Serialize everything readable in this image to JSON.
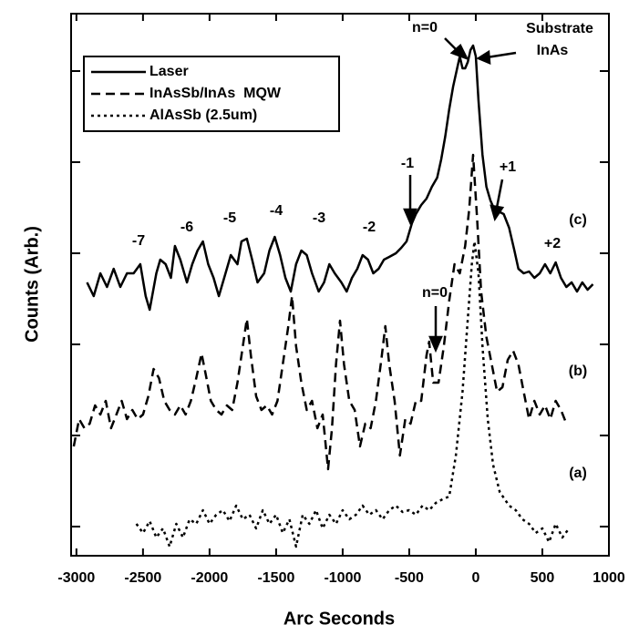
{
  "chart_data": {
    "type": "line",
    "xlabel": "Arc Seconds",
    "ylabel": "Counts (Arb.)",
    "xlim": [
      -3040,
      1000
    ],
    "xticks": [
      -3000,
      -2500,
      -2000,
      -1500,
      -1000,
      -500,
      0,
      500,
      1000
    ],
    "ylim": [
      -0.32,
      5.63
    ],
    "yticks": [
      0,
      1,
      2,
      3,
      4,
      5
    ],
    "yscale": "log",
    "legend": "upper left",
    "series": [
      {
        "name": "Laser",
        "color": "#000000",
        "linestyle": "solid",
        "x": [
          -2920,
          -2870,
          -2820,
          -2770,
          -2720,
          -2670,
          -2620,
          -2570,
          -2520,
          -2480,
          -2450,
          -2400,
          -2370,
          -2330,
          -2290,
          -2260,
          -2220,
          -2170,
          -2130,
          -2090,
          -2050,
          -2010,
          -1970,
          -1930,
          -1880,
          -1840,
          -1790,
          -1760,
          -1720,
          -1680,
          -1640,
          -1590,
          -1550,
          -1510,
          -1470,
          -1430,
          -1390,
          -1350,
          -1310,
          -1270,
          -1230,
          -1180,
          -1140,
          -1100,
          -1060,
          -1010,
          -970,
          -930,
          -890,
          -850,
          -810,
          -770,
          -730,
          -690,
          -650,
          -600,
          -560,
          -520,
          -480,
          -450,
          -410,
          -370,
          -330,
          -290,
          -260,
          -230,
          -200,
          -170,
          -140,
          -120,
          -100,
          -80,
          -60,
          -40,
          -20,
          0,
          20,
          50,
          80,
          110,
          140,
          170,
          210,
          250,
          290,
          320,
          360,
          400,
          440,
          480,
          520,
          560,
          600,
          640,
          680,
          720,
          760,
          800,
          840,
          880
        ],
        "values": [
          2.68,
          2.53,
          2.78,
          2.63,
          2.83,
          2.63,
          2.78,
          2.78,
          2.88,
          2.53,
          2.38,
          2.78,
          2.93,
          2.88,
          2.73,
          3.08,
          2.93,
          2.68,
          2.88,
          3.03,
          3.13,
          2.88,
          2.73,
          2.53,
          2.78,
          2.98,
          2.88,
          3.13,
          3.16,
          2.93,
          2.68,
          2.78,
          3.03,
          3.18,
          2.98,
          2.73,
          2.58,
          2.88,
          3.03,
          2.98,
          2.78,
          2.58,
          2.68,
          2.88,
          2.78,
          2.68,
          2.58,
          2.73,
          2.83,
          2.98,
          2.93,
          2.78,
          2.83,
          2.93,
          2.96,
          3.0,
          3.06,
          3.13,
          3.33,
          3.43,
          3.53,
          3.6,
          3.73,
          3.83,
          4.03,
          4.28,
          4.58,
          4.83,
          5.03,
          5.16,
          5.03,
          5.03,
          5.1,
          5.23,
          5.28,
          5.16,
          4.68,
          4.08,
          3.73,
          3.58,
          3.48,
          3.46,
          3.43,
          3.28,
          3.03,
          2.83,
          2.78,
          2.8,
          2.73,
          2.78,
          2.88,
          2.78,
          2.9,
          2.73,
          2.63,
          2.68,
          2.58,
          2.68,
          2.6,
          2.66
        ]
      },
      {
        "name": "InAsSb/InAs  MQW",
        "color": "#000000",
        "linestyle": "dashed",
        "x": [
          -3020,
          -2980,
          -2940,
          -2900,
          -2860,
          -2820,
          -2780,
          -2740,
          -2700,
          -2660,
          -2620,
          -2580,
          -2540,
          -2500,
          -2460,
          -2420,
          -2380,
          -2340,
          -2300,
          -2260,
          -2220,
          -2180,
          -2140,
          -2100,
          -2060,
          -2030,
          -1990,
          -1950,
          -1910,
          -1870,
          -1830,
          -1790,
          -1750,
          -1720,
          -1690,
          -1650,
          -1610,
          -1570,
          -1530,
          -1490,
          -1450,
          -1410,
          -1380,
          -1350,
          -1310,
          -1270,
          -1230,
          -1190,
          -1150,
          -1110,
          -1080,
          -1050,
          -1020,
          -990,
          -950,
          -910,
          -870,
          -830,
          -790,
          -750,
          -710,
          -680,
          -650,
          -610,
          -570,
          -530,
          -490,
          -450,
          -410,
          -370,
          -350,
          -320,
          -280,
          -240,
          -200,
          -160,
          -120,
          -80,
          -50,
          -20,
          10,
          40,
          80,
          120,
          160,
          200,
          240,
          280,
          320,
          360,
          400,
          440,
          480,
          520,
          560,
          600,
          640,
          680
        ],
        "values": [
          0.88,
          1.18,
          1.08,
          1.13,
          1.33,
          1.23,
          1.38,
          1.08,
          1.23,
          1.38,
          1.18,
          1.28,
          1.18,
          1.23,
          1.43,
          1.73,
          1.63,
          1.38,
          1.28,
          1.23,
          1.33,
          1.23,
          1.38,
          1.63,
          1.9,
          1.68,
          1.38,
          1.28,
          1.23,
          1.33,
          1.28,
          1.58,
          1.98,
          2.28,
          1.88,
          1.43,
          1.28,
          1.33,
          1.23,
          1.38,
          1.78,
          2.18,
          2.53,
          1.98,
          1.58,
          1.28,
          1.38,
          1.08,
          1.23,
          0.63,
          1.08,
          1.78,
          2.26,
          1.78,
          1.38,
          1.28,
          0.88,
          1.13,
          1.08,
          1.38,
          1.83,
          2.2,
          1.78,
          1.38,
          0.78,
          1.18,
          1.13,
          1.38,
          1.38,
          1.88,
          2.03,
          1.58,
          1.58,
          1.98,
          2.48,
          2.88,
          2.78,
          3.08,
          3.48,
          4.08,
          3.38,
          2.58,
          2.08,
          1.78,
          1.48,
          1.53,
          1.83,
          1.93,
          1.78,
          1.48,
          1.18,
          1.38,
          1.23,
          1.33,
          1.18,
          1.38,
          1.28,
          1.13
        ]
      },
      {
        "name": "AlAsSb (2.5um)",
        "color": "#000000",
        "linestyle": "dotted",
        "x": [
          -2550,
          -2500,
          -2450,
          -2400,
          -2350,
          -2300,
          -2250,
          -2200,
          -2150,
          -2100,
          -2050,
          -2000,
          -1950,
          -1900,
          -1850,
          -1800,
          -1750,
          -1700,
          -1650,
          -1600,
          -1550,
          -1500,
          -1450,
          -1400,
          -1350,
          -1300,
          -1250,
          -1200,
          -1150,
          -1100,
          -1050,
          -1000,
          -950,
          -900,
          -850,
          -800,
          -750,
          -700,
          -650,
          -600,
          -550,
          -500,
          -450,
          -400,
          -350,
          -300,
          -250,
          -200,
          -150,
          -100,
          -60,
          -30,
          -10,
          20,
          50,
          90,
          130,
          180,
          250,
          300,
          350,
          400,
          450,
          500,
          550,
          600,
          650,
          700
        ],
        "values": [
          0.03,
          -0.07,
          0.06,
          -0.12,
          -0.02,
          -0.22,
          0.03,
          -0.12,
          0.08,
          0.03,
          0.18,
          0.03,
          0.13,
          0.18,
          0.06,
          0.23,
          0.08,
          0.13,
          -0.02,
          0.18,
          0.03,
          0.13,
          -0.07,
          0.08,
          -0.22,
          0.13,
          0.03,
          0.18,
          -0.02,
          0.13,
          0.03,
          0.18,
          0.08,
          0.13,
          0.23,
          0.13,
          0.18,
          0.08,
          0.18,
          0.23,
          0.16,
          0.18,
          0.13,
          0.23,
          0.18,
          0.26,
          0.3,
          0.33,
          0.78,
          1.48,
          2.28,
          2.88,
          3.13,
          2.78,
          1.98,
          1.18,
          0.68,
          0.38,
          0.23,
          0.18,
          0.08,
          0.03,
          -0.07,
          -0.02,
          -0.17,
          0.03,
          -0.12,
          -0.02
        ]
      }
    ],
    "annotations": [
      "-7",
      "-6",
      "-5",
      "-4",
      "-3",
      "-2",
      "-1",
      "+1",
      "+2",
      "n=0",
      "Substrate",
      "InAs",
      "n=0",
      "(c)",
      "(b)",
      "(a)"
    ]
  }
}
